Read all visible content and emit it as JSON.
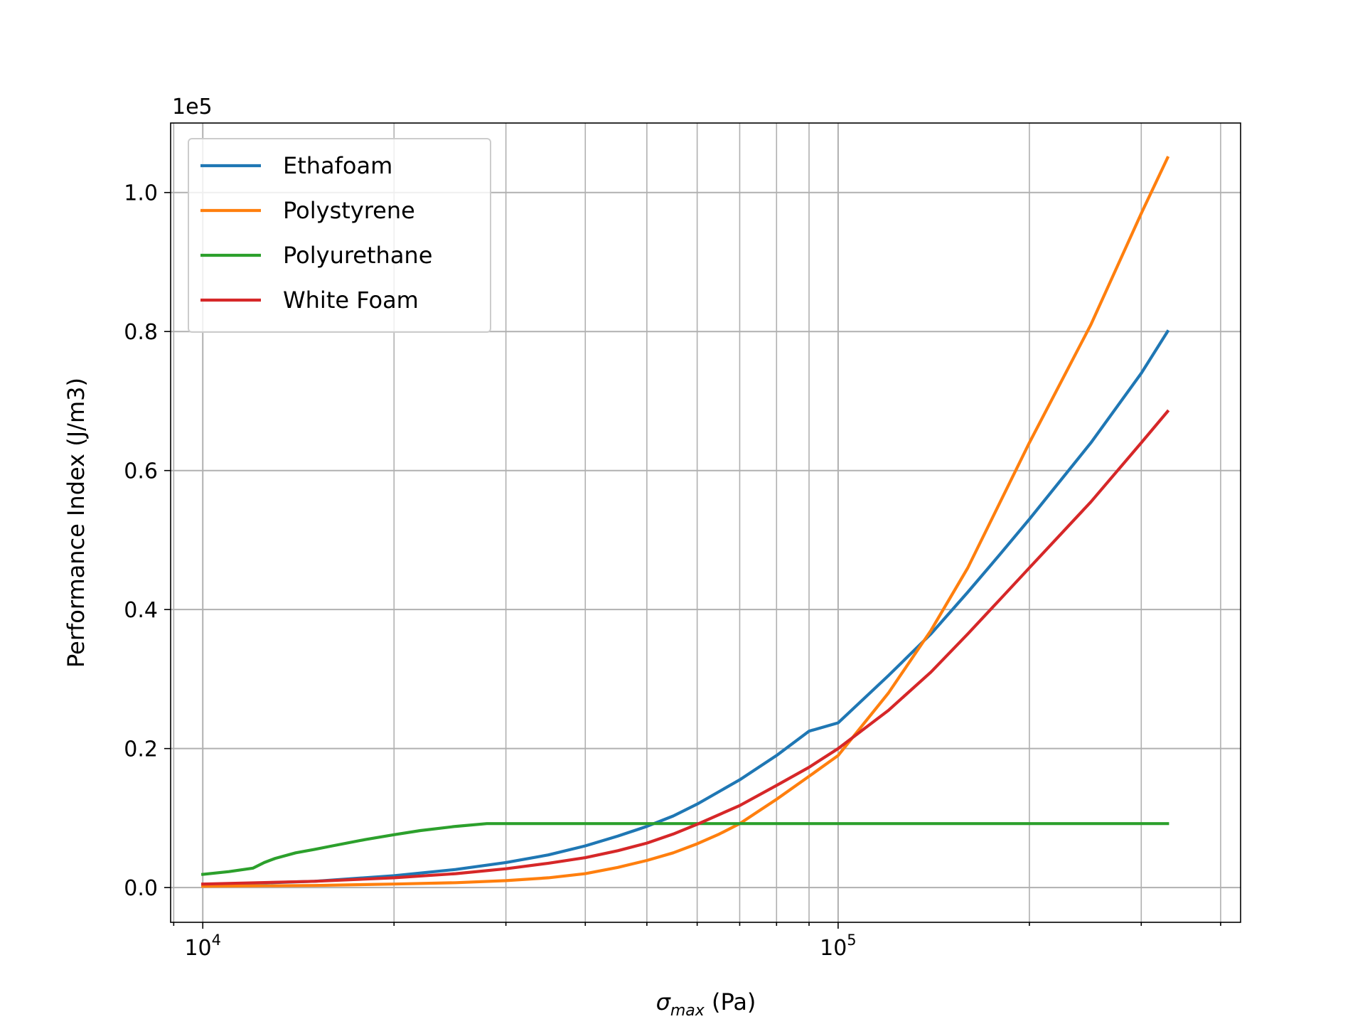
{
  "chart_data": {
    "type": "line",
    "xscale": "log",
    "xlabel_symbol": "σ",
    "xlabel_subscript": "max",
    "xlabel_unit": " (Pa)",
    "ylabel": "Performance Index (J/m3)",
    "y_offset_label": "1e5",
    "xlim": [
      8900,
      430000
    ],
    "ylim": [
      -5000,
      110000
    ],
    "x_ticks": [
      {
        "value": 10000,
        "base": "10",
        "exp": "4"
      },
      {
        "value": 100000,
        "base": "10",
        "exp": "5"
      }
    ],
    "y_ticks": [
      {
        "value": 0,
        "label": "0.0"
      },
      {
        "value": 20000,
        "label": "0.2"
      },
      {
        "value": 40000,
        "label": "0.4"
      },
      {
        "value": 60000,
        "label": "0.6"
      },
      {
        "value": 80000,
        "label": "0.8"
      },
      {
        "value": 100000,
        "label": "1.0"
      }
    ],
    "grid": true,
    "legend_position": "top-left",
    "series": [
      {
        "name": "Ethafoam",
        "color": "#1f77b4",
        "points": [
          [
            10000,
            400
          ],
          [
            15000,
            900
          ],
          [
            20000,
            1700
          ],
          [
            25000,
            2600
          ],
          [
            30000,
            3600
          ],
          [
            35000,
            4700
          ],
          [
            40000,
            6000
          ],
          [
            45000,
            7400
          ],
          [
            50000,
            8800
          ],
          [
            55000,
            10300
          ],
          [
            60000,
            12000
          ],
          [
            70000,
            15500
          ],
          [
            80000,
            19000
          ],
          [
            90000,
            22500
          ],
          [
            100000,
            23700
          ],
          [
            120000,
            30500
          ],
          [
            140000,
            36500
          ],
          [
            160000,
            42500
          ],
          [
            180000,
            48000
          ],
          [
            200000,
            53000
          ],
          [
            250000,
            64000
          ],
          [
            300000,
            74000
          ],
          [
            330000,
            80000
          ]
        ]
      },
      {
        "name": "Polystyrene",
        "color": "#ff7f0e",
        "points": [
          [
            10000,
            200
          ],
          [
            15000,
            300
          ],
          [
            20000,
            500
          ],
          [
            25000,
            700
          ],
          [
            30000,
            1000
          ],
          [
            35000,
            1400
          ],
          [
            40000,
            2000
          ],
          [
            45000,
            2900
          ],
          [
            50000,
            3900
          ],
          [
            55000,
            5000
          ],
          [
            60000,
            6300
          ],
          [
            65000,
            7700
          ],
          [
            70000,
            9200
          ],
          [
            80000,
            12700
          ],
          [
            90000,
            16000
          ],
          [
            100000,
            19000
          ],
          [
            120000,
            28000
          ],
          [
            140000,
            37000
          ],
          [
            160000,
            46000
          ],
          [
            180000,
            55500
          ],
          [
            200000,
            64000
          ],
          [
            250000,
            81000
          ],
          [
            300000,
            97000
          ],
          [
            330000,
            105000
          ]
        ]
      },
      {
        "name": "Polyurethane",
        "color": "#2ca02c",
        "points": [
          [
            10000,
            1900
          ],
          [
            11000,
            2300
          ],
          [
            12000,
            2800
          ],
          [
            12500,
            3600
          ],
          [
            13000,
            4200
          ],
          [
            14000,
            5000
          ],
          [
            15000,
            5500
          ],
          [
            16000,
            6000
          ],
          [
            18000,
            6900
          ],
          [
            20000,
            7600
          ],
          [
            22000,
            8200
          ],
          [
            25000,
            8800
          ],
          [
            28000,
            9200
          ],
          [
            30000,
            9200
          ],
          [
            50000,
            9200
          ],
          [
            100000,
            9200
          ],
          [
            200000,
            9200
          ],
          [
            330000,
            9200
          ]
        ]
      },
      {
        "name": "White Foam",
        "color": "#d62728",
        "points": [
          [
            10000,
            500
          ],
          [
            15000,
            900
          ],
          [
            20000,
            1400
          ],
          [
            25000,
            2000
          ],
          [
            30000,
            2700
          ],
          [
            35000,
            3500
          ],
          [
            40000,
            4300
          ],
          [
            45000,
            5300
          ],
          [
            50000,
            6400
          ],
          [
            55000,
            7700
          ],
          [
            60000,
            9100
          ],
          [
            70000,
            11800
          ],
          [
            80000,
            14700
          ],
          [
            90000,
            17300
          ],
          [
            100000,
            20000
          ],
          [
            120000,
            25500
          ],
          [
            140000,
            31000
          ],
          [
            160000,
            36500
          ],
          [
            180000,
            41500
          ],
          [
            200000,
            46000
          ],
          [
            250000,
            55500
          ],
          [
            300000,
            64000
          ],
          [
            330000,
            68500
          ]
        ]
      }
    ]
  }
}
